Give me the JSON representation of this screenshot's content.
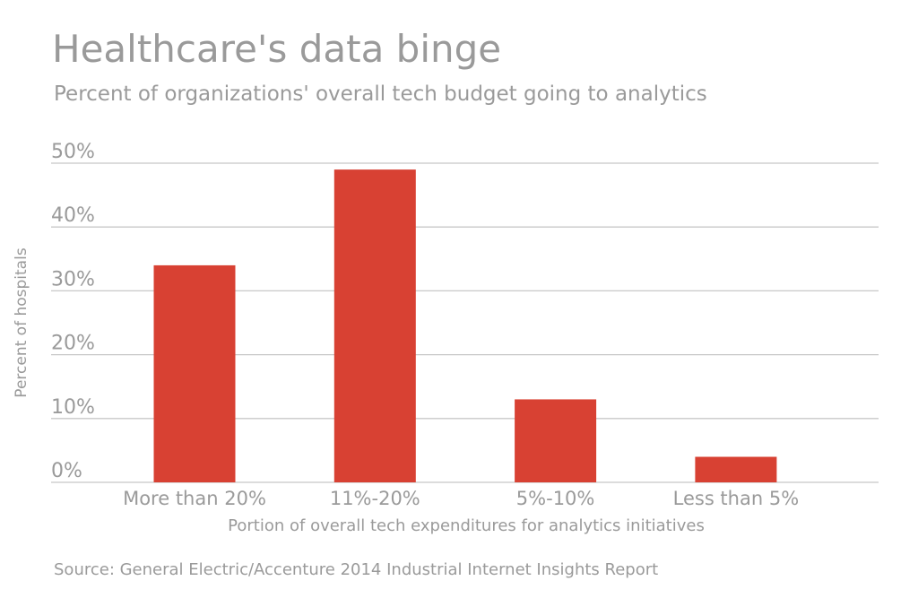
{
  "colors": {
    "bar": "#d84133",
    "grid": "#c8c8c8",
    "text": "#9a9a9a"
  },
  "chart_data": {
    "type": "bar",
    "title": "Healthcare's data binge",
    "subtitle": "Percent of organizations' overall tech budget going to analytics",
    "categories": [
      "More than 20%",
      "11%-20%",
      "5%-10%",
      "Less than 5%"
    ],
    "values": [
      34,
      49,
      13,
      4
    ],
    "xlabel": "Portion of overall tech expenditures for analytics initiatives",
    "ylabel": "Percent of hospitals",
    "ylim": [
      0,
      50
    ],
    "yticks": [
      "0%",
      "10%",
      "20%",
      "30%",
      "40%",
      "50%"
    ],
    "grid": true,
    "legend": "none",
    "source": "Source: General Electric/Accenture 2014 Industrial Internet Insights Report"
  }
}
